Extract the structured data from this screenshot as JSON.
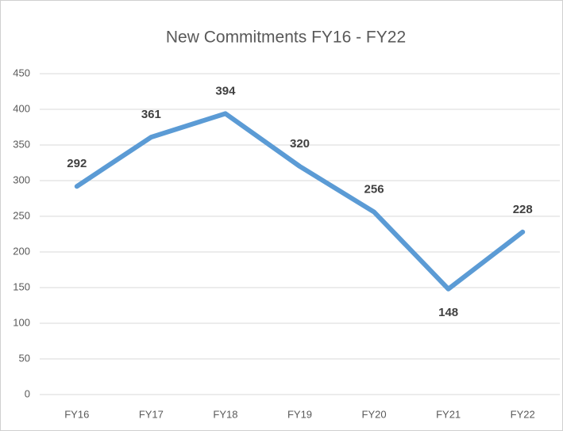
{
  "chart_data": {
    "type": "line",
    "title": "New Commitments FY16 - FY22",
    "categories": [
      "FY16",
      "FY17",
      "FY18",
      "FY19",
      "FY20",
      "FY21",
      "FY22"
    ],
    "values": [
      292,
      361,
      394,
      320,
      256,
      148,
      228
    ],
    "color": "#5b9bd5",
    "ylim": [
      0,
      450
    ],
    "yticks": [
      0,
      50,
      100,
      150,
      200,
      250,
      300,
      350,
      400,
      450
    ],
    "grid": true
  }
}
